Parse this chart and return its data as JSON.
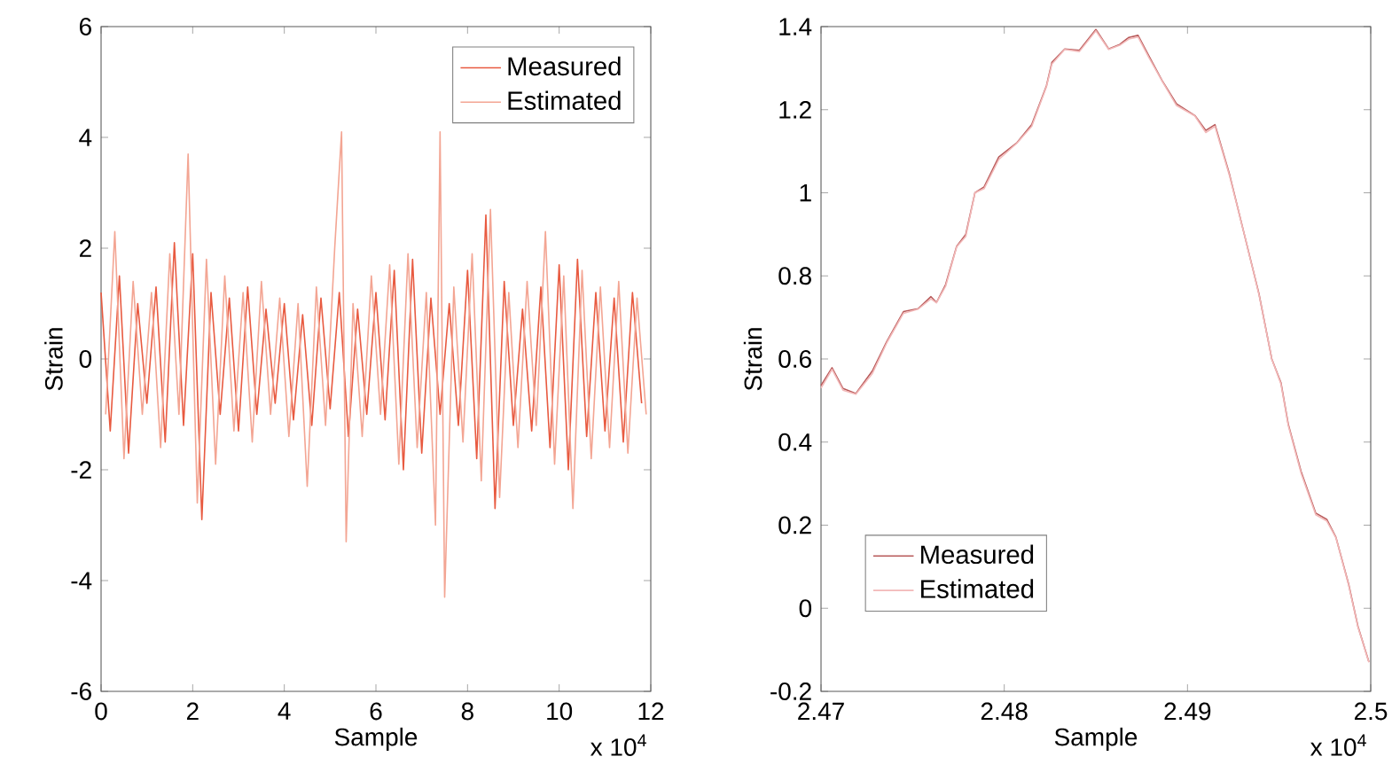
{
  "chart_data": [
    {
      "type": "line",
      "xlabel": "Sample",
      "ylabel": "Strain",
      "xlim": [
        0,
        12
      ],
      "ylim": [
        -6,
        6
      ],
      "xticks": [
        0,
        2,
        4,
        6,
        8,
        10,
        12
      ],
      "yticks": [
        -6,
        -4,
        -2,
        0,
        2,
        4,
        6
      ],
      "legend": "top right",
      "line_style": "solid",
      "annotations": [
        "x 10$^{4}$"
      ],
      "series": [
        {
          "name": "Measured",
          "color": "#e85a40",
          "x": [
            0,
            0.2,
            0.4,
            0.6,
            0.8,
            1.0,
            1.2,
            1.4,
            1.6,
            1.8,
            2.0,
            2.2,
            2.4,
            2.6,
            2.8,
            3.0,
            3.2,
            3.4,
            3.6,
            3.8,
            4.0,
            4.2,
            4.4,
            4.6,
            4.8,
            5.0,
            5.2,
            5.4,
            5.6,
            5.8,
            6.0,
            6.2,
            6.4,
            6.6,
            6.8,
            7.0,
            7.2,
            7.4,
            7.6,
            7.8,
            8.0,
            8.2,
            8.4,
            8.6,
            8.8,
            9.0,
            9.2,
            9.4,
            9.6,
            9.8,
            10.0,
            10.2,
            10.4,
            10.6,
            10.8,
            11.0,
            11.2,
            11.4,
            11.6,
            11.8
          ],
          "values": [
            1.2,
            -1.3,
            1.5,
            -1.7,
            1.0,
            -0.8,
            1.3,
            -1.5,
            2.1,
            -1.2,
            1.9,
            -2.9,
            1.2,
            -1.0,
            1.1,
            -1.3,
            1.3,
            -1.0,
            0.9,
            -0.8,
            1.0,
            -1.1,
            0.8,
            -1.2,
            1.1,
            -0.9,
            1.2,
            -1.4,
            0.9,
            -1.0,
            1.2,
            -1.1,
            1.6,
            -2.0,
            1.8,
            -1.7,
            1.1,
            -1.0,
            1.0,
            -1.2,
            1.6,
            -1.8,
            2.6,
            -2.7,
            1.4,
            -1.2,
            0.9,
            -1.3,
            1.3,
            -1.6,
            1.7,
            -2.0,
            1.8,
            -1.4,
            1.2,
            -1.3,
            1.1,
            -1.5,
            1.2,
            -0.8
          ]
        },
        {
          "name": "Estimated",
          "color": "#f3a593",
          "x": [
            0.1,
            0.3,
            0.5,
            0.7,
            0.9,
            1.1,
            1.3,
            1.5,
            1.7,
            1.9,
            2.1,
            2.3,
            2.5,
            2.7,
            2.9,
            3.1,
            3.3,
            3.5,
            3.7,
            3.9,
            4.1,
            4.3,
            4.5,
            4.7,
            4.9,
            5.1,
            5.25,
            5.35,
            5.5,
            5.7,
            5.9,
            6.1,
            6.3,
            6.5,
            6.7,
            6.9,
            7.1,
            7.3,
            7.4,
            7.5,
            7.7,
            7.9,
            8.1,
            8.3,
            8.5,
            8.7,
            8.9,
            9.1,
            9.3,
            9.5,
            9.7,
            9.9,
            10.1,
            10.3,
            10.5,
            10.7,
            10.9,
            11.1,
            11.3,
            11.5,
            11.7,
            11.9
          ],
          "values": [
            -1.0,
            2.3,
            -1.8,
            1.4,
            -1.0,
            1.2,
            -1.6,
            1.9,
            -1.0,
            3.7,
            -2.6,
            1.8,
            -1.9,
            1.5,
            -1.3,
            1.2,
            -1.5,
            1.4,
            -1.0,
            1.1,
            -1.4,
            1.0,
            -2.3,
            1.3,
            -1.2,
            2.0,
            4.1,
            -3.3,
            1.0,
            -1.4,
            1.5,
            -1.0,
            1.7,
            -1.9,
            1.9,
            -1.6,
            1.2,
            -3.0,
            4.1,
            -4.3,
            1.3,
            -1.5,
            1.9,
            -2.2,
            2.7,
            -2.5,
            1.2,
            -1.6,
            1.4,
            -1.2,
            2.3,
            -1.9,
            1.5,
            -2.7,
            1.6,
            -1.8,
            1.3,
            -1.6,
            1.4,
            -1.7,
            1.1,
            -1.0
          ]
        }
      ]
    },
    {
      "type": "line",
      "xlabel": "Sample",
      "ylabel": "Strain",
      "xlim": [
        2.47,
        2.5
      ],
      "ylim": [
        -0.2,
        1.4
      ],
      "xticks": [
        2.47,
        2.48,
        2.49,
        2.5
      ],
      "yticks": [
        -0.2,
        0,
        0.2,
        0.4,
        0.6,
        0.8,
        1,
        1.2,
        1.4
      ],
      "legend": "bottom left",
      "line_style": "solid",
      "annotations": [
        "x 10$^{4}$"
      ],
      "series": [
        {
          "name": "Measured",
          "color": "#b85a5a",
          "x": [
            2.47,
            2.4706,
            2.4712,
            2.4719,
            2.4728,
            2.4736,
            2.4745,
            2.4753,
            2.476,
            2.4763,
            2.4768,
            2.4774,
            2.4779,
            2.4784,
            2.4789,
            2.4797,
            2.4807,
            2.4815,
            2.4823,
            2.4826,
            2.4833,
            2.4841,
            2.485,
            2.4857,
            2.4863,
            2.4868,
            2.4873,
            2.4879,
            2.4886,
            2.4894,
            2.4904,
            2.491,
            2.4915,
            2.4923,
            2.4931,
            2.4939,
            2.4946,
            2.4951,
            2.4955,
            2.4962,
            2.497,
            2.4976,
            2.4981,
            2.4988,
            2.4993,
            2.4999
          ],
          "values": [
            0.536,
            0.579,
            0.529,
            0.517,
            0.571,
            0.643,
            0.714,
            0.721,
            0.75,
            0.736,
            0.779,
            0.871,
            0.9,
            1.0,
            1.014,
            1.086,
            1.121,
            1.164,
            1.257,
            1.314,
            1.346,
            1.343,
            1.393,
            1.346,
            1.357,
            1.374,
            1.379,
            1.329,
            1.271,
            1.214,
            1.186,
            1.15,
            1.164,
            1.043,
            0.9,
            0.757,
            0.6,
            0.543,
            0.443,
            0.329,
            0.229,
            0.214,
            0.171,
            0.057,
            -0.043,
            -0.129
          ]
        },
        {
          "name": "Estimated",
          "color": "#f2b8b8",
          "x": [
            2.47,
            2.4706,
            2.4712,
            2.4719,
            2.4728,
            2.4736,
            2.4745,
            2.4753,
            2.476,
            2.4763,
            2.4768,
            2.4774,
            2.4779,
            2.4784,
            2.4789,
            2.4797,
            2.4807,
            2.4815,
            2.4823,
            2.4826,
            2.4833,
            2.4841,
            2.485,
            2.4857,
            2.4863,
            2.4868,
            2.4873,
            2.4879,
            2.4886,
            2.4894,
            2.4904,
            2.491,
            2.4915,
            2.4923,
            2.4931,
            2.4939,
            2.4946,
            2.4951,
            2.4955,
            2.4962,
            2.497,
            2.4976,
            2.4981,
            2.4988,
            2.4993,
            2.4999
          ],
          "values": [
            0.53,
            0.575,
            0.525,
            0.515,
            0.565,
            0.64,
            0.71,
            0.72,
            0.745,
            0.735,
            0.775,
            0.87,
            0.895,
            1.0,
            1.01,
            1.08,
            1.12,
            1.16,
            1.255,
            1.31,
            1.345,
            1.34,
            1.39,
            1.345,
            1.355,
            1.37,
            1.375,
            1.325,
            1.27,
            1.21,
            1.185,
            1.145,
            1.16,
            1.04,
            0.9,
            0.755,
            0.6,
            0.54,
            0.44,
            0.325,
            0.225,
            0.21,
            0.17,
            0.055,
            -0.045,
            -0.13
          ]
        }
      ]
    }
  ]
}
